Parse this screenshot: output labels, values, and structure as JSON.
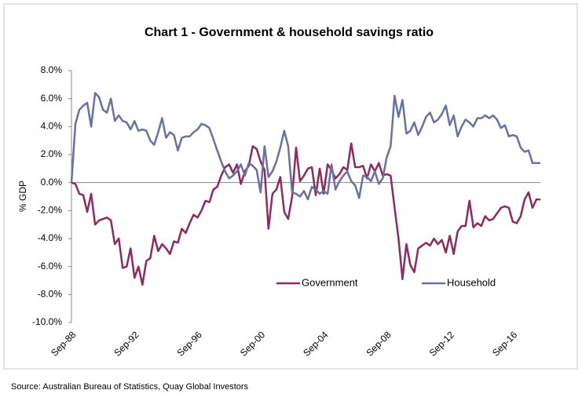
{
  "chart_data": {
    "type": "line",
    "title": "Chart 1 - Government & household savings ratio",
    "y_label": "% GDP",
    "source": "Source: Australian Bureau of Statistics, Quay Global Investors",
    "categories": [
      "Sep-88",
      null,
      null,
      null,
      null,
      null,
      null,
      null,
      null,
      null,
      null,
      null,
      null,
      null,
      null,
      null,
      "Sep-92",
      null,
      null,
      null,
      null,
      null,
      null,
      null,
      null,
      null,
      null,
      null,
      null,
      null,
      null,
      null,
      "Sep-96",
      null,
      null,
      null,
      null,
      null,
      null,
      null,
      null,
      null,
      null,
      null,
      null,
      null,
      null,
      null,
      "Sep-00",
      null,
      null,
      null,
      null,
      null,
      null,
      null,
      null,
      null,
      null,
      null,
      null,
      null,
      null,
      null,
      "Sep-04",
      null,
      null,
      null,
      null,
      null,
      null,
      null,
      null,
      null,
      null,
      null,
      null,
      null,
      null,
      null,
      "Sep-08",
      null,
      null,
      null,
      null,
      null,
      null,
      null,
      null,
      null,
      null,
      null,
      null,
      null,
      null,
      null,
      "Sep-12",
      null,
      null,
      null,
      null,
      null,
      null,
      null,
      null,
      null,
      null,
      null,
      null,
      null,
      null,
      null,
      "Sep-16",
      null,
      null,
      null,
      null,
      null,
      null,
      null
    ],
    "series": [
      {
        "name": "Government",
        "color": "#8e2a5c",
        "values": [
          0.0,
          -0.1,
          -0.8,
          -0.9,
          -2.1,
          -0.8,
          -3.0,
          -2.7,
          -2.6,
          -2.5,
          -2.7,
          -4.4,
          -4.0,
          -6.1,
          -6.0,
          -4.7,
          -6.8,
          -6.0,
          -7.3,
          -5.6,
          -5.4,
          -3.8,
          -4.9,
          -4.4,
          -4.7,
          -5.1,
          -4.2,
          -4.3,
          -3.3,
          -3.6,
          -2.9,
          -2.3,
          -2.5,
          -2.0,
          -1.3,
          -1.4,
          -0.5,
          -0.3,
          0.5,
          1.1,
          1.3,
          0.7,
          1.3,
          -0.1,
          0.8,
          1.2,
          2.6,
          2.4,
          1.5,
          0.9,
          -3.3,
          -0.8,
          -0.5,
          0.4,
          -2.1,
          -2.6,
          -1.0,
          2.5,
          0.1,
          0.5,
          1.0,
          1.1,
          -0.9,
          1.0,
          -0.8,
          1.3,
          0.9,
          0.3,
          0.6,
          1.1,
          0.9,
          2.8,
          1.1,
          1.1,
          1.2,
          0.3,
          1.3,
          0.8,
          1.4,
          0.5,
          0.6,
          0.5,
          -1.8,
          -4.0,
          -6.9,
          -4.4,
          -5.9,
          -6.4,
          -4.7,
          -4.5,
          -4.3,
          -4.5,
          -4.0,
          -4.4,
          -4.1,
          -5.0,
          -3.8,
          -5.1,
          -3.5,
          -3.1,
          -3.1,
          -1.3,
          -3.2,
          -2.9,
          -3.1,
          -2.4,
          -2.7,
          -2.6,
          -2.2,
          -1.8,
          -1.7,
          -1.8,
          -2.8,
          -2.9,
          -2.4,
          -1.2,
          -0.7,
          -1.8,
          -1.2,
          -1.2
        ]
      },
      {
        "name": "Household",
        "color": "#6b6fa3",
        "values": [
          0.0,
          4.2,
          5.2,
          5.5,
          5.7,
          4.0,
          6.4,
          6.1,
          5.2,
          5.0,
          6.0,
          4.4,
          4.8,
          4.4,
          4.3,
          3.8,
          4.4,
          3.7,
          3.8,
          3.7,
          3.0,
          2.7,
          3.6,
          4.6,
          3.2,
          3.6,
          3.4,
          2.3,
          3.2,
          3.3,
          3.3,
          3.6,
          3.8,
          4.2,
          4.1,
          3.9,
          3.1,
          2.3,
          1.5,
          0.8,
          0.3,
          0.5,
          0.8,
          1.3,
          0.5,
          1.4,
          1.2,
          0.9,
          -0.7,
          2.6,
          0.4,
          0.8,
          1.5,
          2.5,
          3.7,
          2.6,
          -0.7,
          -0.8,
          -1.0,
          -0.6,
          -1.2,
          -0.3,
          -0.5,
          -0.8,
          -0.6,
          -0.8,
          1.3,
          -0.5,
          0.1,
          0.5,
          0.8,
          0.1,
          -0.2,
          -1.1,
          0.5,
          0.4,
          0.1,
          0.8,
          -0.1,
          0.3,
          1.8,
          2.6,
          6.2,
          4.7,
          5.9,
          3.5,
          3.7,
          4.3,
          3.4,
          4.0,
          4.7,
          5.0,
          4.3,
          4.5,
          4.9,
          5.5,
          4.1,
          4.8,
          3.3,
          4.0,
          4.5,
          4.3,
          4.0,
          4.6,
          4.6,
          4.8,
          4.6,
          4.8,
          4.5,
          3.9,
          4.1,
          3.3,
          3.4,
          3.3,
          2.5,
          2.2,
          2.3,
          1.4,
          1.4,
          1.4
        ]
      }
    ],
    "ylim": [
      -10,
      8
    ],
    "yticks": [
      {
        "value": -10,
        "label": "-10.0%"
      },
      {
        "value": -8,
        "label": "-8.0%"
      },
      {
        "value": -6,
        "label": "-6.0%"
      },
      {
        "value": -4,
        "label": "-4.0%"
      },
      {
        "value": -2,
        "label": "-2.0%"
      },
      {
        "value": 0,
        "label": "0.0%"
      },
      {
        "value": 2,
        "label": "2.0%"
      },
      {
        "value": 4,
        "label": "4.0%"
      },
      {
        "value": 6,
        "label": "6.0%"
      },
      {
        "value": 8,
        "label": "8.0%"
      }
    ],
    "grid": false
  }
}
